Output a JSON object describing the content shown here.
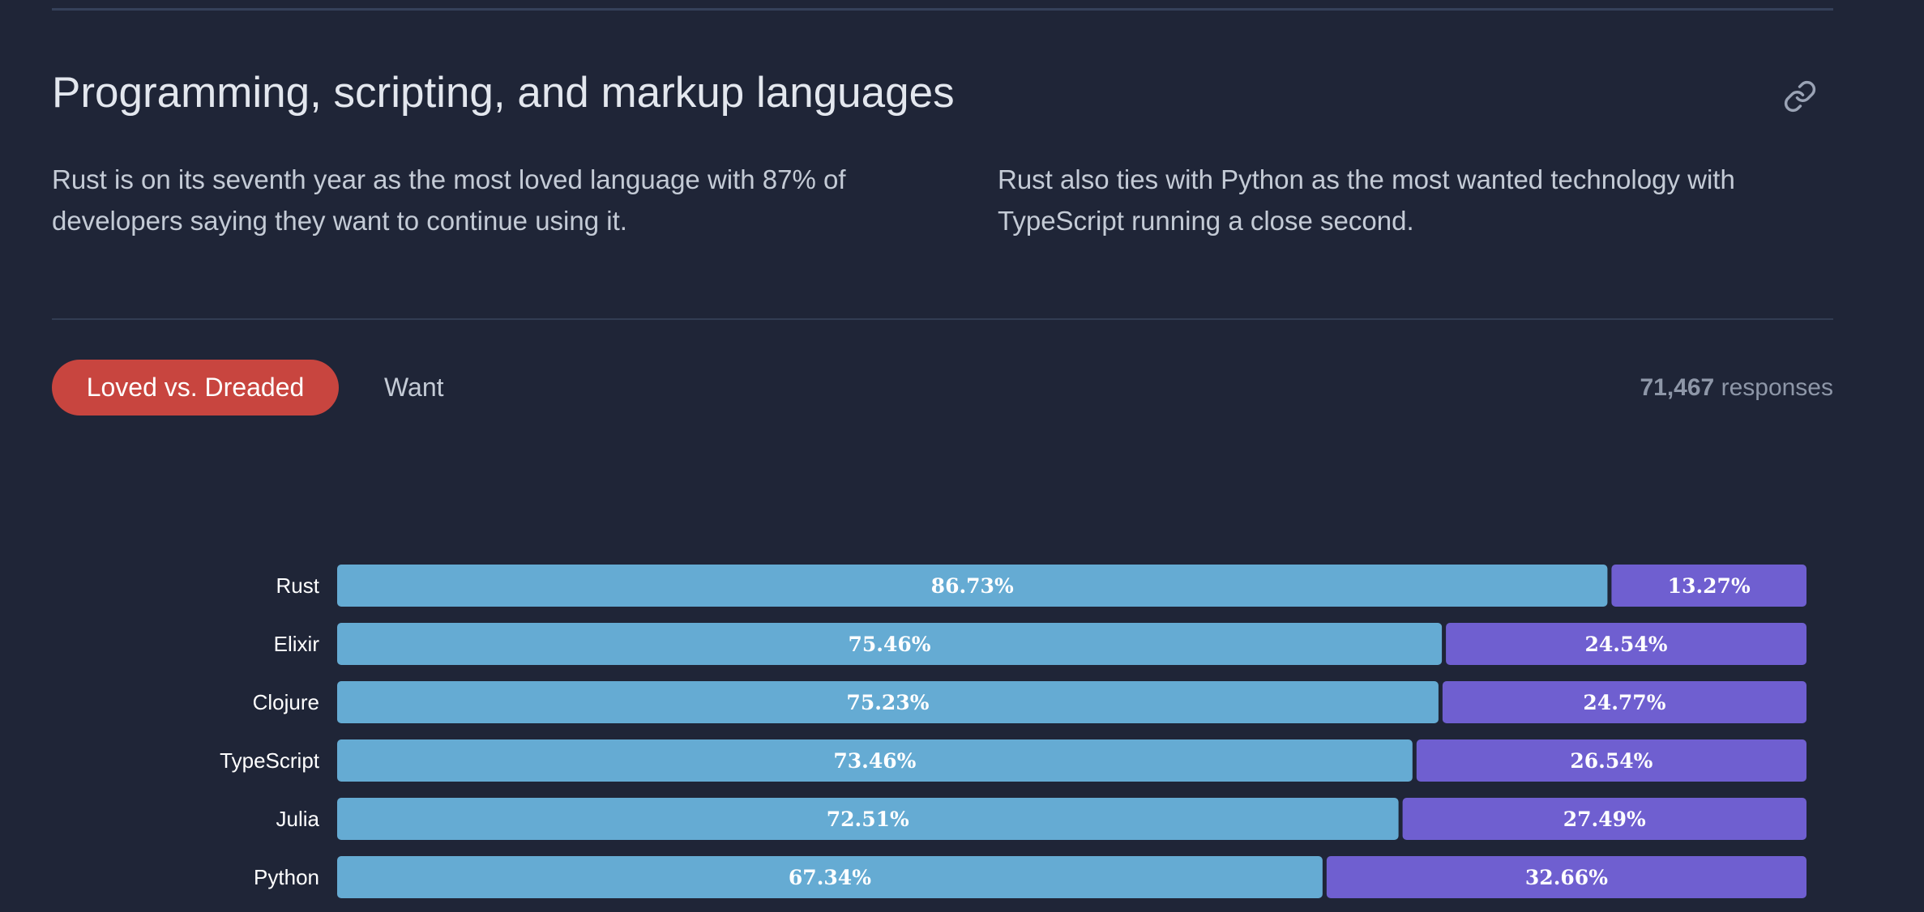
{
  "section": {
    "title": "Programming, scripting, and markup languages",
    "intro_left": "Rust is on its seventh year as the most loved language with 87% of developers saying they want to continue using it.",
    "intro_right": "Rust also ties with Python as the most wanted technology with TypeScript running a close second."
  },
  "icons": {
    "link": "link-icon"
  },
  "tabs": [
    {
      "label": "Loved vs. Dreaded",
      "active": true
    },
    {
      "label": "Want",
      "active": false
    }
  ],
  "responses": {
    "count": "71,467",
    "label": "responses"
  },
  "colors": {
    "background": "#1f2537",
    "loved": "#65abd3",
    "dreaded": "#6f5fd0",
    "accent": "#c8453f"
  },
  "chart_data": {
    "type": "bar",
    "orientation": "horizontal",
    "stacked": true,
    "categories": [
      "Rust",
      "Elixir",
      "Clojure",
      "TypeScript",
      "Julia",
      "Python"
    ],
    "series": [
      {
        "values": [
          86.73,
          75.46,
          75.23,
          73.46,
          72.51,
          67.34
        ],
        "color": "#65abd3"
      },
      {
        "values": [
          13.27,
          24.54,
          24.77,
          26.54,
          27.49,
          32.66
        ],
        "color": "#6f5fd0"
      }
    ],
    "value_format": "percent",
    "xlim": [
      0,
      100
    ]
  }
}
